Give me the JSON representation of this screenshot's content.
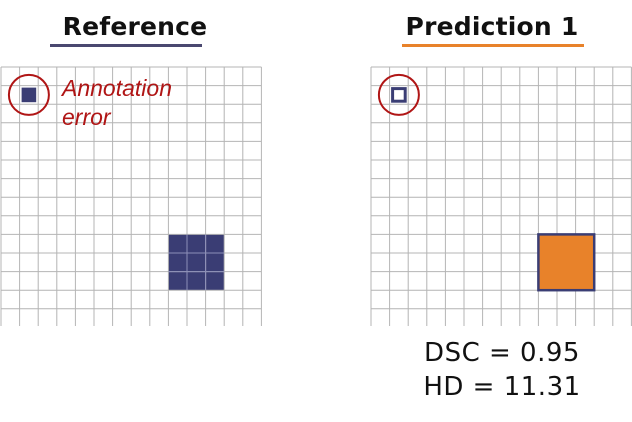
{
  "panels": [
    {
      "title": "Reference",
      "underline_color": "#4a4870",
      "fill_color": "#3a3d74",
      "small_mark_style": "filled",
      "annotation": [
        "Annotation",
        "error"
      ]
    },
    {
      "title": "Prediction 1",
      "underline_color": "#e8822a",
      "fill_color": "#e8822a",
      "edge_color": "#3a3d74",
      "small_mark_style": "outline",
      "metrics": [
        "DSC = 0.95",
        "HD = 11.31"
      ]
    }
  ],
  "colors": {
    "grid_line": "#b4b4b4",
    "circle": "#b01515"
  }
}
